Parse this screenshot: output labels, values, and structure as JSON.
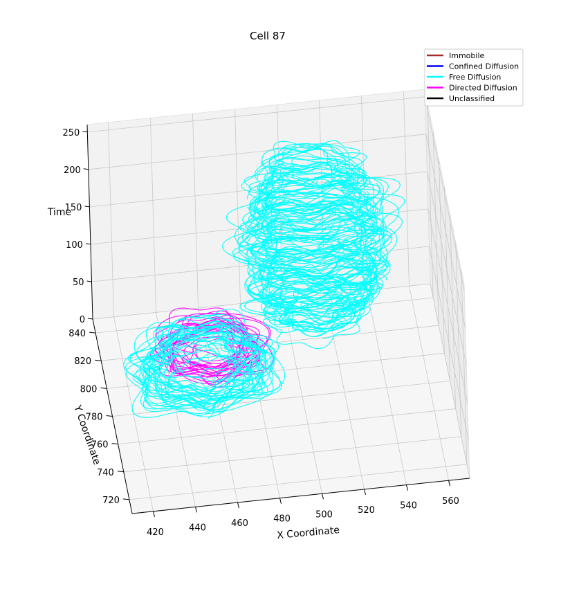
{
  "chart_data": {
    "type": "line",
    "projection": "3d",
    "title": "Cell 87",
    "xlabel": "X Coordinate",
    "ylabel": "Y Coordinate",
    "zlabel": "Time",
    "xlim": [
      410,
      570
    ],
    "ylim": [
      710,
      850
    ],
    "zlim": [
      0,
      260
    ],
    "x_ticks": [
      "420",
      "440",
      "460",
      "480",
      "500",
      "520",
      "540",
      "560"
    ],
    "y_ticks": [
      "720",
      "740",
      "760",
      "780",
      "800",
      "820",
      "840"
    ],
    "z_ticks": [
      "0",
      "50",
      "100",
      "150",
      "200",
      "250"
    ],
    "grid": true,
    "legend_position": "top-right",
    "legend": [
      {
        "name": "Immobile",
        "color": "#a52a2a"
      },
      {
        "name": "Confined Diffusion",
        "color": "#0000ff"
      },
      {
        "name": "Free Diffusion",
        "color": "#00ffff"
      },
      {
        "name": "Directed Diffusion",
        "color": "#ff00ff"
      },
      {
        "name": "Unclassified",
        "color": "#000000"
      }
    ],
    "series": [
      {
        "name": "Directed Diffusion",
        "color": "#ff00ff",
        "clusters": [
          {
            "center": [
              463,
              815
            ],
            "radius": [
              22,
              20
            ],
            "t_range": [
              0,
              10
            ],
            "loops": 22
          }
        ]
      },
      {
        "name": "Free Diffusion",
        "color": "#00ffff",
        "clusters": [
          {
            "center": [
              456,
              800
            ],
            "radius": [
              30,
              28
            ],
            "t_range": [
              0,
              22
            ],
            "loops": 34
          },
          {
            "center": [
              512,
              822
            ],
            "radius": [
              30,
              22
            ],
            "t_range": [
              10,
              225
            ],
            "loops": 95
          }
        ]
      }
    ]
  }
}
